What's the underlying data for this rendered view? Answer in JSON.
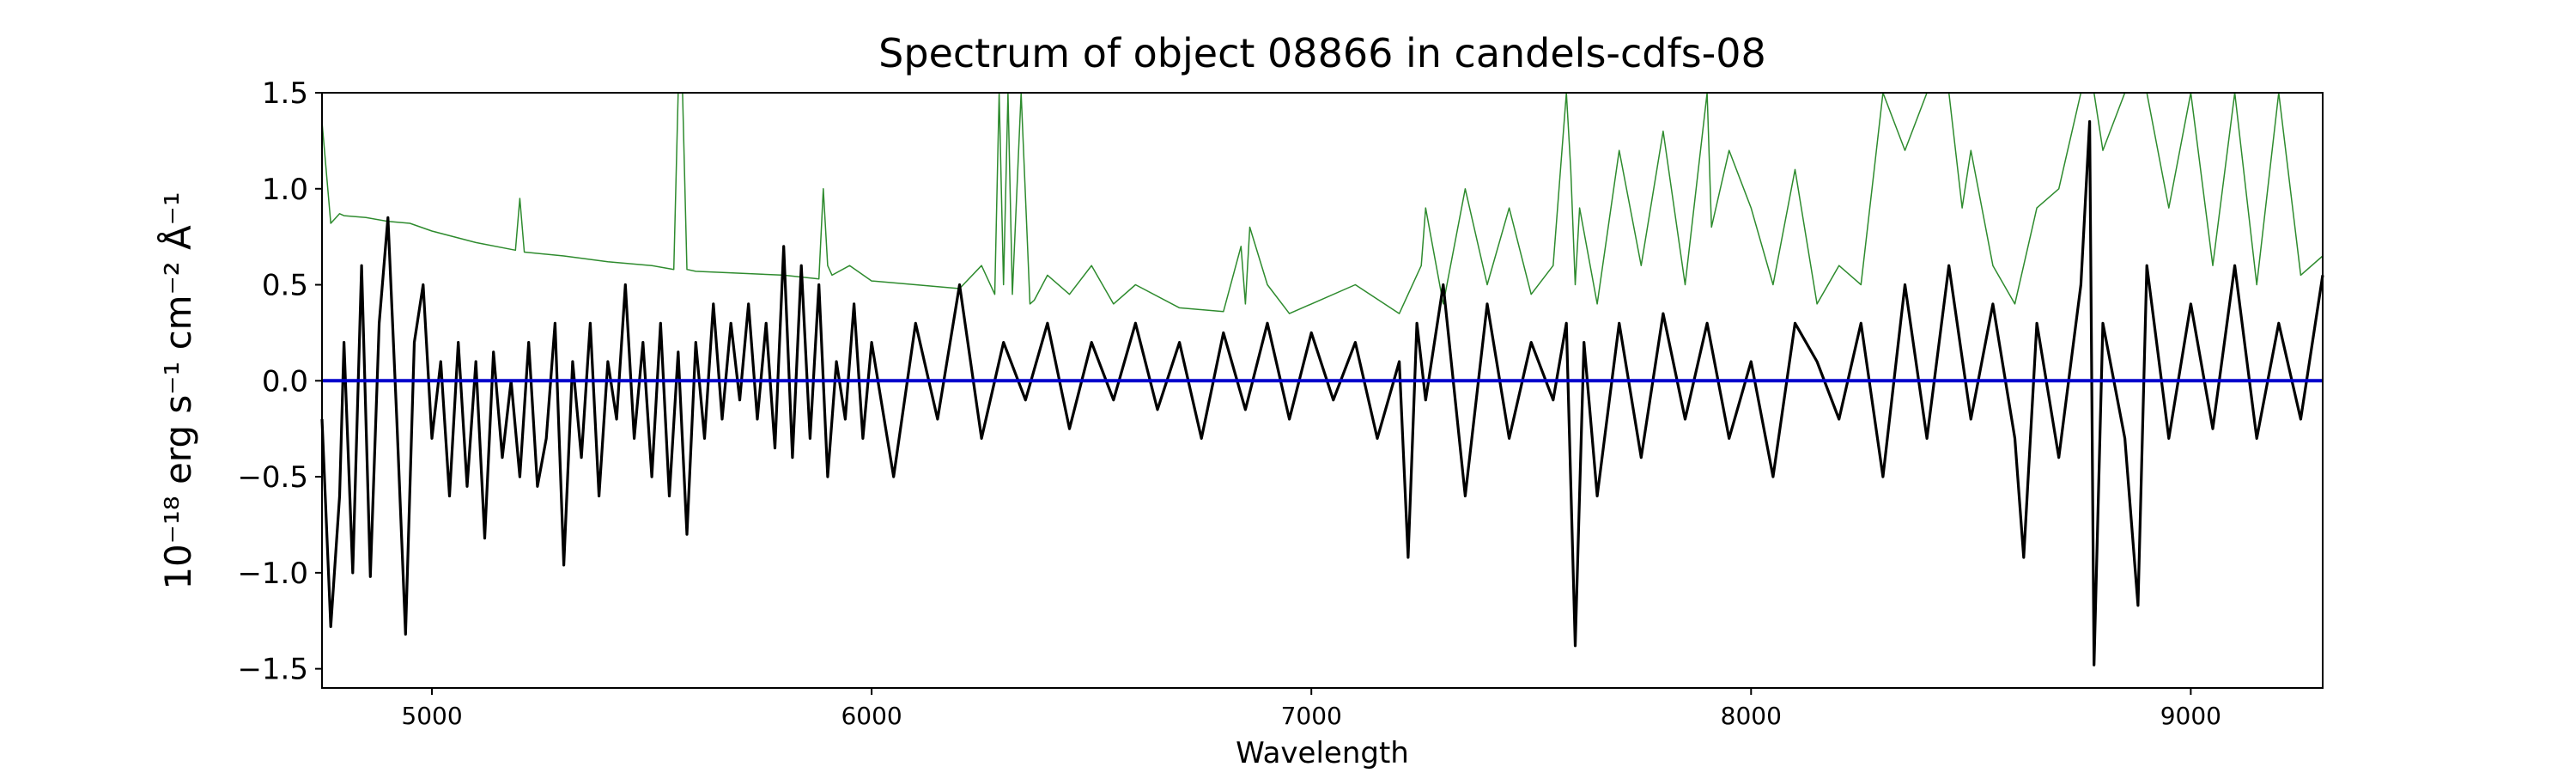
{
  "chart_data": {
    "type": "line",
    "title": "Spectrum of object 08866 in candels-cdfs-08",
    "xlabel": "Wavelength",
    "ylabel": "10⁻¹⁸ erg s⁻¹ cm⁻² Å⁻¹",
    "xlim": [
      4750,
      9300
    ],
    "ylim": [
      -1.6,
      1.5
    ],
    "xticks": [
      5000,
      6000,
      7000,
      8000,
      9000
    ],
    "xtick_labels": [
      "5000",
      "6000",
      "7000",
      "8000",
      "9000"
    ],
    "yticks": [
      -1.5,
      -1.0,
      -0.5,
      0.0,
      0.5,
      1.0,
      1.5
    ],
    "ytick_labels": [
      "−1.5",
      "−1.0",
      "−0.5",
      "0.0",
      "0.5",
      "1.0",
      "1.5"
    ],
    "grid": false,
    "colors": {
      "flux": "#000000",
      "noise": "#2e8b2e",
      "zero": "#0000cc"
    },
    "series": [
      {
        "key": "flux",
        "x": [
          4750,
          4770,
          4790,
          4800,
          4820,
          4840,
          4860,
          4880,
          4900,
          4920,
          4940,
          4960,
          4980,
          5000,
          5020,
          5040,
          5060,
          5080,
          5100,
          5120,
          5140,
          5160,
          5180,
          5200,
          5220,
          5240,
          5260,
          5280,
          5300,
          5320,
          5340,
          5360,
          5380,
          5400,
          5420,
          5440,
          5460,
          5480,
          5500,
          5520,
          5540,
          5560,
          5580,
          5600,
          5620,
          5640,
          5660,
          5680,
          5700,
          5720,
          5740,
          5760,
          5780,
          5800,
          5820,
          5840,
          5860,
          5880,
          5900,
          5920,
          5940,
          5960,
          5980,
          6000,
          6050,
          6100,
          6150,
          6200,
          6250,
          6300,
          6350,
          6400,
          6450,
          6500,
          6550,
          6600,
          6650,
          6700,
          6750,
          6800,
          6850,
          6900,
          6950,
          7000,
          7050,
          7100,
          7150,
          7200,
          7220,
          7240,
          7260,
          7300,
          7350,
          7400,
          7450,
          7500,
          7550,
          7580,
          7600,
          7620,
          7650,
          7700,
          7750,
          7800,
          7850,
          7900,
          7950,
          8000,
          8050,
          8100,
          8150,
          8200,
          8250,
          8300,
          8350,
          8400,
          8450,
          8500,
          8550,
          8600,
          8620,
          8650,
          8700,
          8750,
          8770,
          8780,
          8800,
          8850,
          8880,
          8900,
          8950,
          9000,
          9050,
          9100,
          9150,
          9200,
          9250,
          9300
        ],
        "y": [
          -0.2,
          -1.28,
          -0.6,
          0.2,
          -1.0,
          0.6,
          -1.02,
          0.3,
          0.85,
          -0.2,
          -1.32,
          0.2,
          0.5,
          -0.3,
          0.1,
          -0.6,
          0.2,
          -0.55,
          0.1,
          -0.82,
          0.15,
          -0.4,
          0.0,
          -0.5,
          0.2,
          -0.55,
          -0.3,
          0.3,
          -0.96,
          0.1,
          -0.4,
          0.3,
          -0.6,
          0.1,
          -0.2,
          0.5,
          -0.3,
          0.2,
          -0.5,
          0.3,
          -0.6,
          0.15,
          -0.8,
          0.2,
          -0.3,
          0.4,
          -0.2,
          0.3,
          -0.1,
          0.4,
          -0.2,
          0.3,
          -0.35,
          0.7,
          -0.4,
          0.6,
          -0.3,
          0.5,
          -0.5,
          0.1,
          -0.2,
          0.4,
          -0.3,
          0.2,
          -0.5,
          0.3,
          -0.2,
          0.5,
          -0.3,
          0.2,
          -0.1,
          0.3,
          -0.25,
          0.2,
          -0.1,
          0.3,
          -0.15,
          0.2,
          -0.3,
          0.25,
          -0.15,
          0.3,
          -0.2,
          0.25,
          -0.1,
          0.2,
          -0.3,
          0.1,
          -0.92,
          0.3,
          -0.1,
          0.5,
          -0.6,
          0.4,
          -0.3,
          0.2,
          -0.1,
          0.3,
          -1.38,
          0.2,
          -0.6,
          0.3,
          -0.4,
          0.35,
          -0.2,
          0.3,
          -0.3,
          0.1,
          -0.5,
          0.3,
          0.1,
          -0.2,
          0.3,
          -0.5,
          0.5,
          -0.3,
          0.6,
          -0.2,
          0.4,
          -0.3,
          -0.92,
          0.3,
          -0.4,
          0.5,
          1.35,
          -1.48,
          0.3,
          -0.3,
          -1.17,
          0.6,
          -0.3,
          0.4,
          -0.25,
          0.6,
          -0.3,
          0.3,
          -0.2,
          0.55
        ]
      },
      {
        "key": "noise",
        "x": [
          4750,
          4770,
          4790,
          4800,
          4850,
          4900,
          4950,
          5000,
          5100,
          5190,
          5200,
          5210,
          5300,
          5400,
          5500,
          5550,
          5560,
          5565,
          5570,
          5580,
          5600,
          5700,
          5800,
          5880,
          5890,
          5900,
          5910,
          5950,
          6000,
          6100,
          6200,
          6250,
          6280,
          6290,
          6300,
          6310,
          6320,
          6340,
          6360,
          6370,
          6400,
          6450,
          6500,
          6550,
          6600,
          6700,
          6800,
          6840,
          6850,
          6860,
          6900,
          6950,
          7000,
          7100,
          7200,
          7250,
          7260,
          7300,
          7350,
          7400,
          7450,
          7500,
          7550,
          7580,
          7590,
          7600,
          7610,
          7650,
          7700,
          7750,
          7800,
          7850,
          7900,
          7910,
          7950,
          8000,
          8050,
          8100,
          8150,
          8200,
          8250,
          8280,
          8300,
          8350,
          8400,
          8450,
          8480,
          8500,
          8550,
          8600,
          8650,
          8700,
          8750,
          8780,
          8800,
          8850,
          8900,
          8950,
          9000,
          9050,
          9100,
          9150,
          9200,
          9250,
          9300
        ],
        "y": [
          1.35,
          0.82,
          0.87,
          0.86,
          0.85,
          0.83,
          0.82,
          0.78,
          0.72,
          0.68,
          0.95,
          0.67,
          0.65,
          0.62,
          0.6,
          0.58,
          1.5,
          1.5,
          1.5,
          0.58,
          0.57,
          0.56,
          0.55,
          0.53,
          1.0,
          0.6,
          0.55,
          0.6,
          0.52,
          0.5,
          0.48,
          0.6,
          0.45,
          1.5,
          0.5,
          1.5,
          0.45,
          1.5,
          0.4,
          0.42,
          0.55,
          0.45,
          0.6,
          0.4,
          0.5,
          0.38,
          0.36,
          0.7,
          0.4,
          0.8,
          0.5,
          0.35,
          0.4,
          0.5,
          0.35,
          0.6,
          0.9,
          0.4,
          1.0,
          0.5,
          0.9,
          0.45,
          0.6,
          1.5,
          1.1,
          0.5,
          0.9,
          0.4,
          1.2,
          0.6,
          1.3,
          0.5,
          1.5,
          0.8,
          1.2,
          0.9,
          0.5,
          1.1,
          0.4,
          0.6,
          0.5,
          1.1,
          1.5,
          1.2,
          1.5,
          1.5,
          0.9,
          1.2,
          0.6,
          0.4,
          0.9,
          1.0,
          1.5,
          1.5,
          1.2,
          1.5,
          1.5,
          0.9,
          1.5,
          0.6,
          1.5,
          0.5,
          1.5,
          0.55,
          0.65
        ]
      },
      {
        "key": "zero",
        "x": [
          4750,
          9300
        ],
        "y": [
          0.0,
          0.0
        ]
      }
    ]
  }
}
